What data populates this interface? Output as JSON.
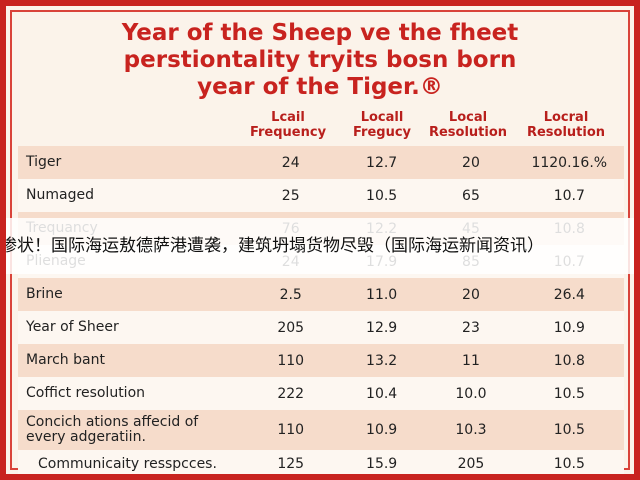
{
  "title": [
    "Year of the Sheep ve the fheet",
    "perstiontality tryits bosn born",
    "year of the Tiger.®"
  ],
  "table": {
    "headers": [
      [
        "Lcail",
        "Frequency"
      ],
      [
        "Locall",
        "Fregucy"
      ],
      [
        "Local",
        "Resolution"
      ],
      [
        "Locral",
        "Resolution"
      ]
    ],
    "rows": [
      [
        [
          "Tiger"
        ],
        "24",
        "12.7",
        "20",
        "1120.16.%"
      ],
      [
        [
          "Numaged"
        ],
        "25",
        "10.5",
        "65",
        "10.7"
      ],
      [
        [
          "Trequancy"
        ],
        "76",
        "12.2",
        "45",
        "10.8"
      ],
      [
        [
          "Plienage"
        ],
        "24",
        "17.9",
        "85",
        "10.7"
      ],
      [
        [
          "Brine"
        ],
        "2.5",
        "11.0",
        "20",
        "26.4"
      ],
      [
        [
          "Year of Sheer"
        ],
        "205",
        "12.9",
        "23",
        "10.9"
      ],
      [
        [
          "March bant"
        ],
        "110",
        "13.2",
        "11",
        "10.8"
      ],
      [
        [
          "Coffict resolution"
        ],
        "222",
        "10.4",
        "10.0",
        "10.5"
      ],
      [
        [
          "Concich ations affecid of",
          "every adgeratiin."
        ],
        "110",
        "10.9",
        "10.3",
        "10.5"
      ],
      [
        [
          "Communicaity resspcces."
        ],
        "125",
        "15.9",
        "205",
        "10.5"
      ]
    ]
  },
  "banner": "惨状！国际海运敖德萨港遭袭，建筑坍塌货物尽毁（国际海运新闻资讯）"
}
